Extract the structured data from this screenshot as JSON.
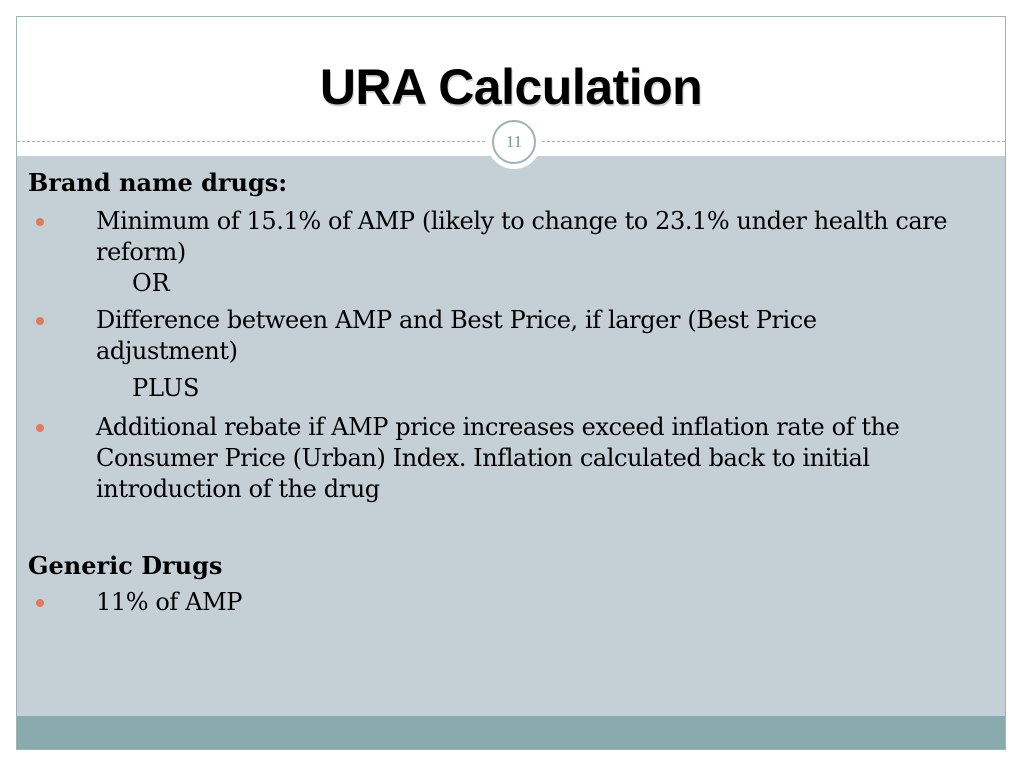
{
  "slide": {
    "title": "URA Calculation",
    "page_number": "11"
  },
  "sections": [
    {
      "heading": "Brand name drugs:",
      "items": [
        "Minimum of 15.1% of AMP (likely to change to 23.1% under health care reform)",
        "Difference between AMP and Best Price, if larger (Best Price adjustment)",
        "Additional rebate if AMP price increases exceed inflation rate of the Consumer Price (Urban) Index.  Inflation calculated back to initial introduction of the drug"
      ],
      "connectors": [
        "OR",
        "PLUS"
      ]
    },
    {
      "heading": "Generic Drugs",
      "items": [
        "11% of AMP"
      ]
    }
  ],
  "colors": {
    "body_background": "#c5d0d6",
    "footer_band": "#8aabae",
    "bullet": "#e07a5f",
    "frame_border": "#9fb3b5",
    "page_number_text": "#7d9397"
  }
}
